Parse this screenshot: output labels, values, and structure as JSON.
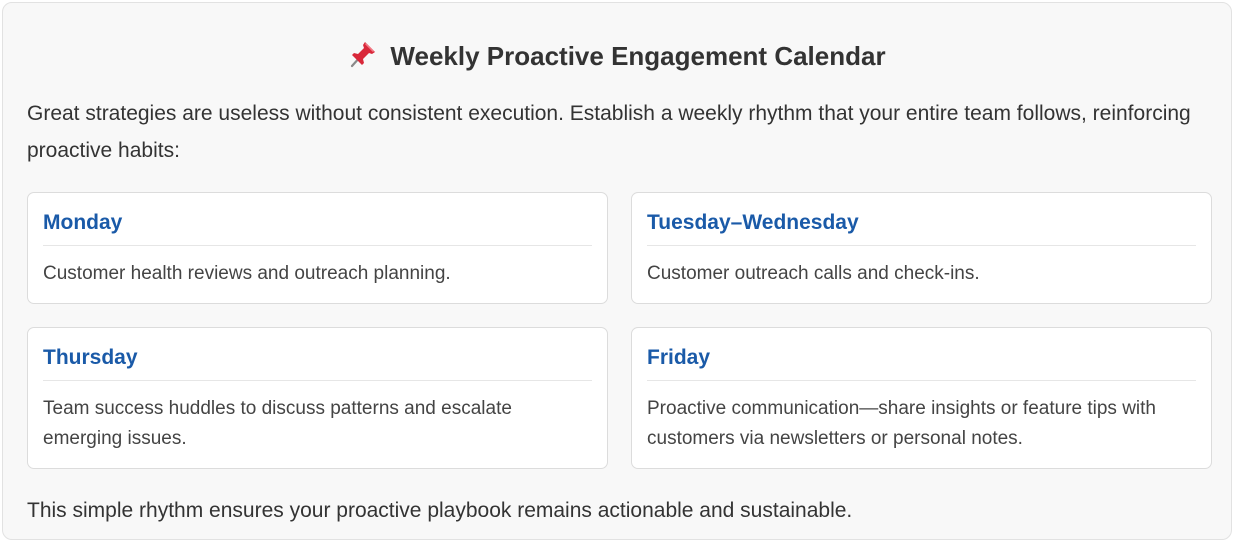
{
  "page": {
    "title": "Weekly Proactive Engagement Calendar",
    "title_icon": "pushpin-icon",
    "intro": "Great strategies are useless without consistent execution. Establish a weekly rhythm that your entire team follows, reinforcing proactive habits:",
    "cards": [
      {
        "day": "Monday",
        "text": "Customer health reviews and outreach planning."
      },
      {
        "day": "Tuesday–Wednesday",
        "text": "Customer outreach calls and check-ins."
      },
      {
        "day": "Thursday",
        "text": "Team success huddles to discuss patterns and escalate emerging issues."
      },
      {
        "day": "Friday",
        "text": "Proactive communication—share insights or feature tips with customers via newsletters or personal notes."
      }
    ],
    "outro": "This simple rhythm ensures your proactive playbook remains actionable and sustainable."
  },
  "colors": {
    "accent": "#1a5aa8",
    "panel_bg": "#f8f8f8",
    "pin_red": "#d9283a"
  }
}
